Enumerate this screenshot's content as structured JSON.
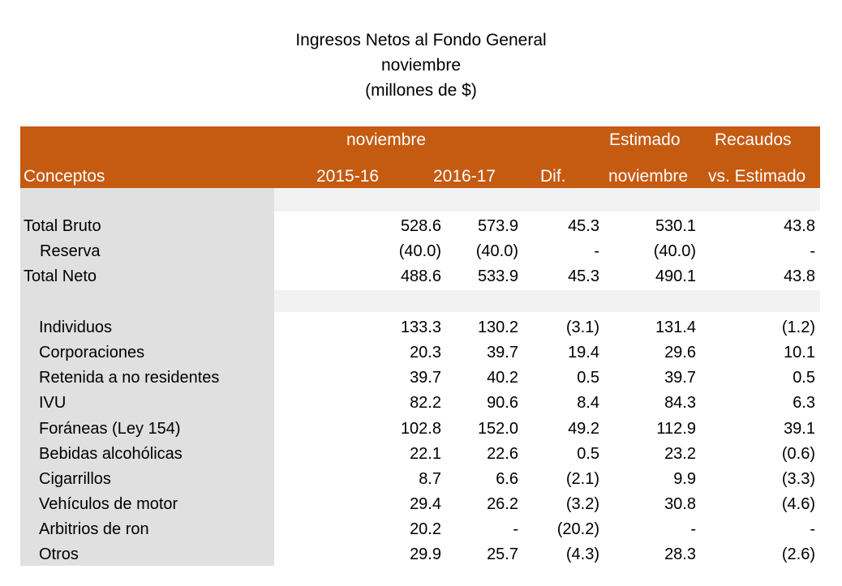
{
  "title": {
    "line1": "Ingresos Netos al Fondo General",
    "line2": "noviembre",
    "line3": "(millones de $)"
  },
  "header": {
    "group_month": "noviembre",
    "estimado": "Estimado",
    "recaudos": "Recaudos",
    "conceptos": "Conceptos",
    "col_2015": "2015-16",
    "col_2016": "2016-17",
    "col_dif": "Dif.",
    "col_est_month": "noviembre",
    "col_vs_est": "vs. Estimado"
  },
  "colors": {
    "header_bg": "#c55a11",
    "header_text": "#ffffff",
    "concept_bg": "#e0e0e0",
    "band_bg": "#f2f2f2"
  },
  "rows": [
    {
      "label": "Total Bruto",
      "v2015": "528.6",
      "v2016": "573.9",
      "dif": "45.3",
      "est": "530.1",
      "vs": "43.8"
    },
    {
      "label": "Reserva",
      "v2015": "(40.0)",
      "v2016": "(40.0)",
      "dif": "-",
      "est": "(40.0)",
      "vs": "-"
    },
    {
      "label": "Total Neto",
      "v2015": "488.6",
      "v2016": "533.9",
      "dif": "45.3",
      "est": "490.1",
      "vs": "43.8"
    },
    {
      "label": "",
      "v2015": "",
      "v2016": "",
      "dif": "",
      "est": "",
      "vs": ""
    },
    {
      "label": "Individuos",
      "v2015": "133.3",
      "v2016": "130.2",
      "dif": "(3.1)",
      "est": "131.4",
      "vs": "(1.2)"
    },
    {
      "label": "Corporaciones",
      "v2015": "20.3",
      "v2016": "39.7",
      "dif": "19.4",
      "est": "29.6",
      "vs": "10.1"
    },
    {
      "label": "Retenida a no residentes",
      "v2015": "39.7",
      "v2016": "40.2",
      "dif": "0.5",
      "est": "39.7",
      "vs": "0.5"
    },
    {
      "label": "IVU",
      "v2015": "82.2",
      "v2016": "90.6",
      "dif": "8.4",
      "est": "84.3",
      "vs": "6.3"
    },
    {
      "label": "Foráneas (Ley 154)",
      "v2015": "102.8",
      "v2016": "152.0",
      "dif": "49.2",
      "est": "112.9",
      "vs": "39.1"
    },
    {
      "label": "Bebidas alcohólicas",
      "v2015": "22.1",
      "v2016": "22.6",
      "dif": "0.5",
      "est": "23.2",
      "vs": "(0.6)"
    },
    {
      "label": "Cigarrillos",
      "v2015": "8.7",
      "v2016": "6.6",
      "dif": "(2.1)",
      "est": "9.9",
      "vs": "(3.3)"
    },
    {
      "label": "Vehículos de motor",
      "v2015": "29.4",
      "v2016": "26.2",
      "dif": "(3.2)",
      "est": "30.8",
      "vs": "(4.6)"
    },
    {
      "label": "Arbitrios de ron",
      "v2015": "20.2",
      "v2016": "-",
      "dif": "(20.2)",
      "est": "-",
      "vs": "-"
    },
    {
      "label": "Otros",
      "v2015": "29.9",
      "v2016": "25.7",
      "dif": "(4.3)",
      "est": "28.3",
      "vs": "(2.6)"
    }
  ]
}
